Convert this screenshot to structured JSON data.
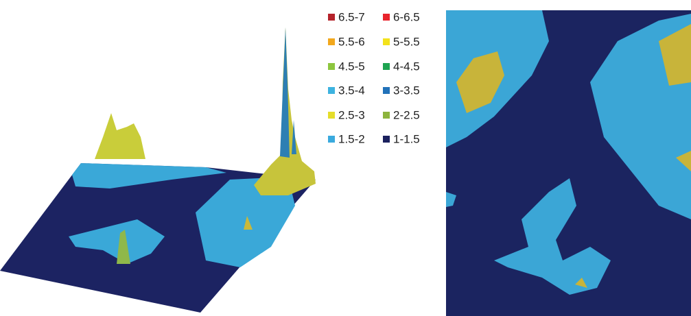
{
  "legend": {
    "items": [
      {
        "label": "6.5-7",
        "color": "#b5232b"
      },
      {
        "label": "6-6.5",
        "color": "#e8242c"
      },
      {
        "label": "5.5-6",
        "color": "#f2a81d"
      },
      {
        "label": "5-5.5",
        "color": "#f3e21b"
      },
      {
        "label": "4.5-5",
        "color": "#8dc63f"
      },
      {
        "label": "4-4.5",
        "color": "#1ea451"
      },
      {
        "label": "3.5-4",
        "color": "#3db3e0"
      },
      {
        "label": "3-3.5",
        "color": "#2272b9"
      },
      {
        "label": "2.5-3",
        "color": "#e5dd2a"
      },
      {
        "label": "2-2.5",
        "color": "#8db43d"
      },
      {
        "label": "1.5-2",
        "color": "#3aaade"
      },
      {
        "label": "1-1.5",
        "color": "#1b215e"
      }
    ]
  }
}
